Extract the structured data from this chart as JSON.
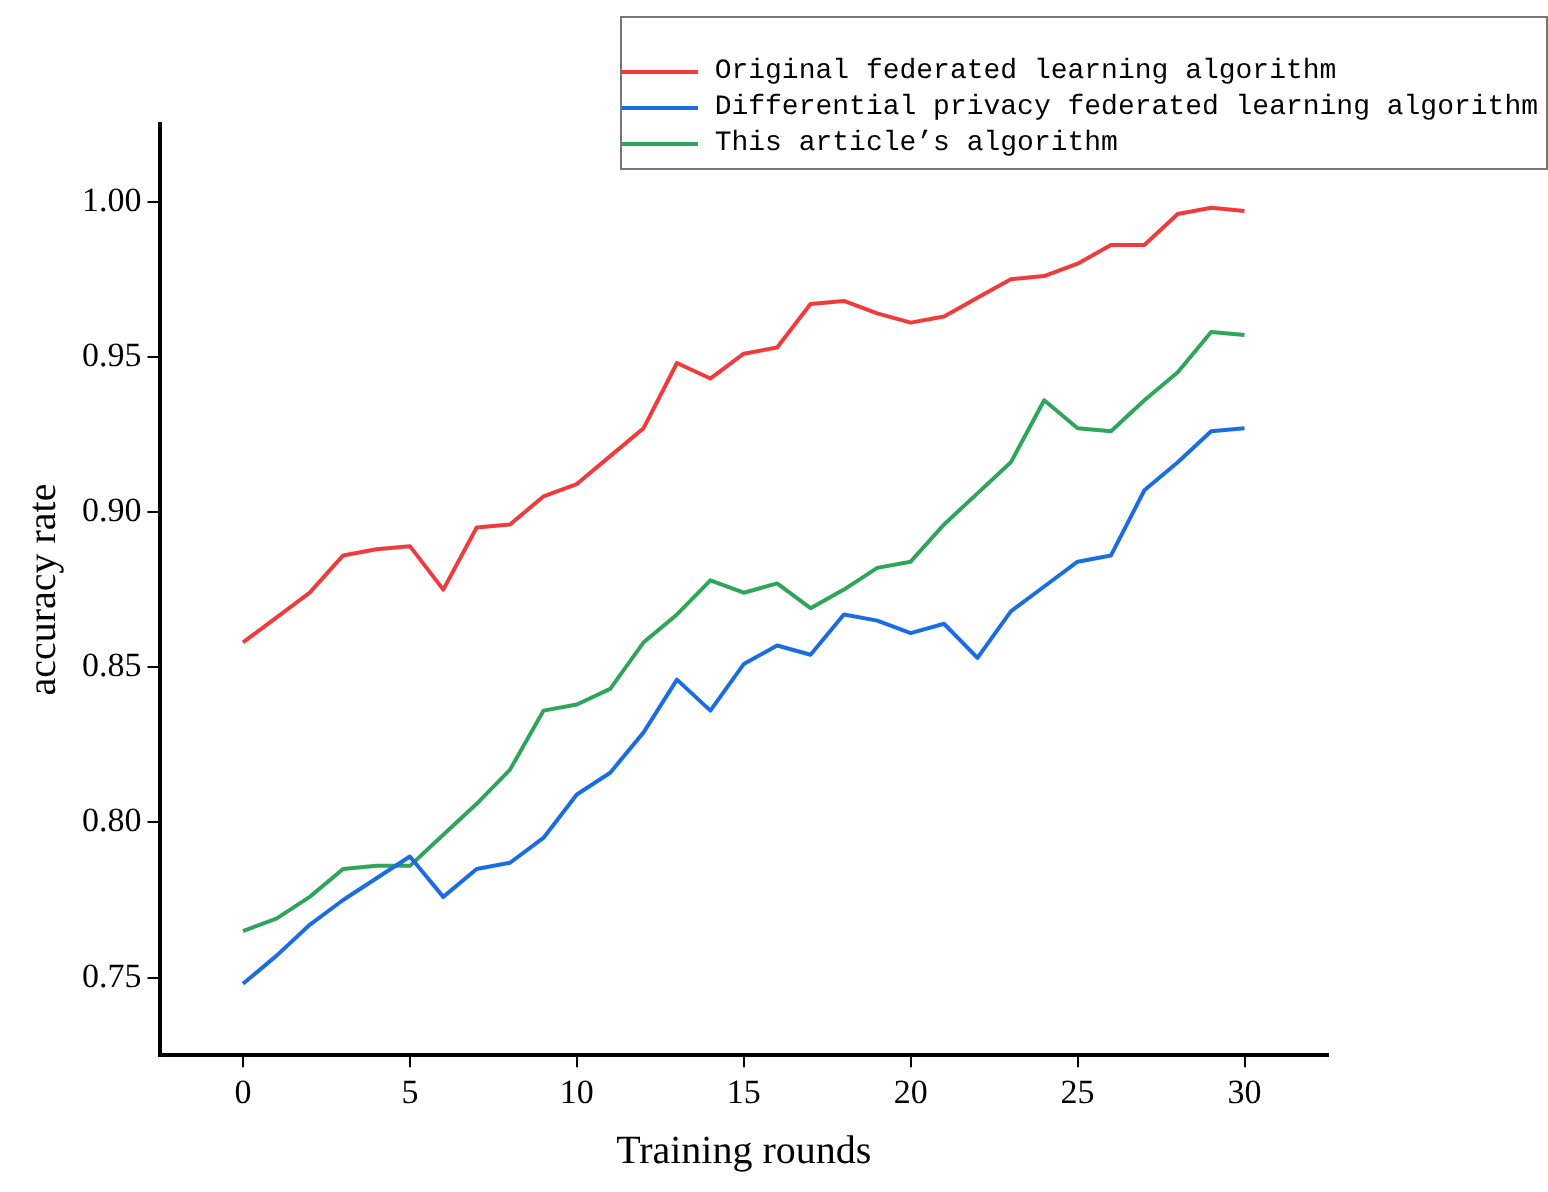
{
  "chart_data": {
    "type": "line",
    "xlabel": "Training rounds",
    "ylabel": "accuracy rate",
    "x": [
      0,
      1,
      2,
      3,
      4,
      5,
      6,
      7,
      8,
      9,
      10,
      11,
      12,
      13,
      14,
      15,
      16,
      17,
      18,
      19,
      20,
      21,
      22,
      23,
      24,
      25,
      26,
      27,
      28,
      29,
      30
    ],
    "xlim": [
      -2.5,
      32.5
    ],
    "xticks": [
      0,
      5,
      10,
      15,
      20,
      25,
      30
    ],
    "ylim": [
      0.725,
      1.025
    ],
    "yticks": [
      {
        "value": 0.75,
        "label": "0.75"
      },
      {
        "value": 0.8,
        "label": "0.80"
      },
      {
        "value": 0.85,
        "label": "0.85"
      },
      {
        "value": 0.9,
        "label": "0.90"
      },
      {
        "value": 0.95,
        "label": "0.95"
      },
      {
        "value": 1.0,
        "label": "1.00"
      }
    ],
    "grid": false,
    "legend": "top right",
    "marker": "none",
    "line_style": "solid",
    "series": [
      {
        "name": "Original federated learning algorithm",
        "color": "#ef3b3b",
        "values": [
          0.858,
          0.866,
          0.874,
          0.886,
          0.888,
          0.889,
          0.875,
          0.895,
          0.896,
          0.905,
          0.909,
          0.918,
          0.927,
          0.948,
          0.943,
          0.951,
          0.953,
          0.967,
          0.968,
          0.964,
          0.961,
          0.963,
          0.969,
          0.975,
          0.976,
          0.98,
          0.986,
          0.986,
          0.996,
          0.998,
          0.997
        ]
      },
      {
        "name": "Differential privacy federated learning algorithm",
        "color": "#1a6de0",
        "values": [
          0.748,
          0.757,
          0.767,
          0.775,
          0.782,
          0.789,
          0.776,
          0.785,
          0.787,
          0.795,
          0.809,
          0.816,
          0.829,
          0.846,
          0.836,
          0.851,
          0.857,
          0.854,
          0.867,
          0.865,
          0.861,
          0.864,
          0.853,
          0.868,
          0.876,
          0.884,
          0.886,
          0.907,
          0.916,
          0.926,
          0.927
        ]
      },
      {
        "name": "This article’s algorithm",
        "color": "#2ea55a",
        "values": [
          0.765,
          0.769,
          0.776,
          0.785,
          0.786,
          0.786,
          0.796,
          0.806,
          0.817,
          0.836,
          0.838,
          0.843,
          0.858,
          0.867,
          0.878,
          0.874,
          0.877,
          0.869,
          0.875,
          0.882,
          0.884,
          0.896,
          0.906,
          0.916,
          0.936,
          0.927,
          0.926,
          0.936,
          0.945,
          0.958,
          0.957
        ]
      }
    ]
  }
}
